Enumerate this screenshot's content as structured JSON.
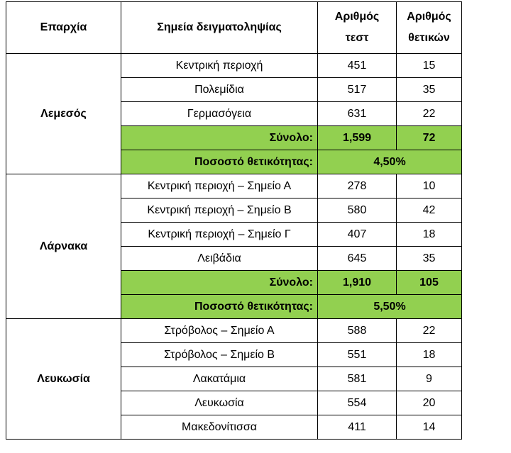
{
  "table": {
    "header": [
      "Επαρχία",
      "Σημεία δειγματοληψίας",
      "Αριθμός\nτεστ",
      "Αριθμός\nθετικών"
    ],
    "groups": [
      {
        "province": "Λεμεσός",
        "rows": [
          [
            "Κεντρική περιοχή",
            "451",
            "15"
          ],
          [
            "Πολεμίδια",
            "517",
            "35"
          ],
          [
            "Γερμασόγεια",
            "631",
            "22"
          ]
        ],
        "total": {
          "label": "Σύνολο:",
          "tests": "1,599",
          "positives": "72"
        },
        "rate": {
          "label": "Ποσοστό θετικότητας:",
          "value": "4,50%"
        }
      },
      {
        "province": "Λάρνακα",
        "rows": [
          [
            "Κεντρική περιοχή – Σημείο Α",
            "278",
            "10"
          ],
          [
            "Κεντρική περιοχή – Σημείο Β",
            "580",
            "42"
          ],
          [
            "Κεντρική περιοχή – Σημείο Γ",
            "407",
            "18"
          ],
          [
            "Λειβάδια",
            "645",
            "35"
          ]
        ],
        "total": {
          "label": "Σύνολο:",
          "tests": "1,910",
          "positives": "105"
        },
        "rate": {
          "label": "Ποσοστό θετικότητας:",
          "value": "5,50%"
        }
      },
      {
        "province": "Λευκωσία",
        "rows": [
          [
            "Στρόβολος – Σημείο Α",
            "588",
            "22"
          ],
          [
            "Στρόβολος – Σημείο Β",
            "551",
            "18"
          ],
          [
            "Λακατάμια",
            "581",
            "9"
          ],
          [
            "Λευκωσία",
            "554",
            "20"
          ],
          [
            "Μακεδονίτισσα",
            "411",
            "14"
          ]
        ]
      }
    ]
  }
}
